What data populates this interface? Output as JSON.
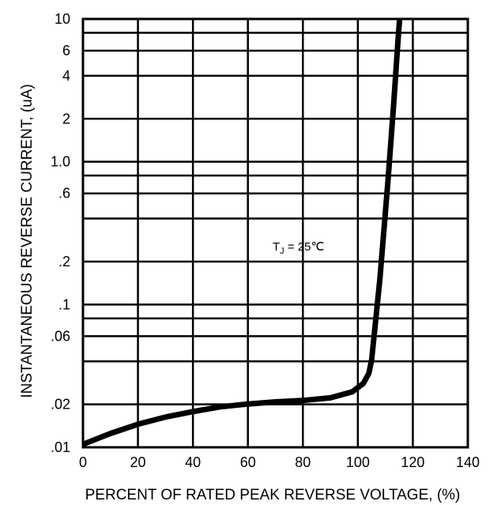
{
  "chart_data": {
    "type": "line",
    "title": "",
    "xlabel": "PERCENT OF RATED PEAK REVERSE VOLTAGE, (%)",
    "ylabel": "INSTANTANEOUS REVERSE CURRENT, (uA)",
    "x_scale": "linear",
    "y_scale": "log",
    "xlim": [
      0,
      140
    ],
    "ylim": [
      0.01,
      10
    ],
    "x_ticks": [
      0,
      20,
      40,
      60,
      80,
      100,
      120,
      140
    ],
    "x_tick_labels": [
      "0",
      "20",
      "40",
      "60",
      "80",
      "100",
      "120",
      "140"
    ],
    "y_tick_values": [
      0.01,
      0.02,
      0.06,
      0.1,
      0.2,
      0.6,
      1.0,
      2,
      4,
      6,
      10
    ],
    "y_tick_labels": [
      ".01",
      ".02",
      ".06",
      ".1",
      ".2",
      ".6",
      "1.0",
      "2",
      "4",
      "6",
      "10"
    ],
    "y_grid_values": [
      0.01,
      0.02,
      0.04,
      0.06,
      0.08,
      0.1,
      0.2,
      0.4,
      0.6,
      0.8,
      1.0,
      2,
      4,
      6,
      8,
      10
    ],
    "grid": true,
    "annotation": {
      "main": "T",
      "sub": "J",
      "rest": " = 25℃"
    },
    "series": [
      {
        "color": "#000000",
        "points": [
          [
            0,
            0.0105
          ],
          [
            10,
            0.0125
          ],
          [
            20,
            0.0145
          ],
          [
            30,
            0.0163
          ],
          [
            40,
            0.0178
          ],
          [
            50,
            0.0192
          ],
          [
            60,
            0.0201
          ],
          [
            70,
            0.0208
          ],
          [
            80,
            0.0213
          ],
          [
            90,
            0.0222
          ],
          [
            98,
            0.0245
          ],
          [
            102,
            0.028
          ],
          [
            104,
            0.033
          ],
          [
            105,
            0.041
          ],
          [
            108,
            0.15
          ],
          [
            111,
            0.75
          ],
          [
            113,
            2.5
          ],
          [
            114.6,
            7
          ],
          [
            115.2,
            10
          ]
        ]
      }
    ]
  }
}
